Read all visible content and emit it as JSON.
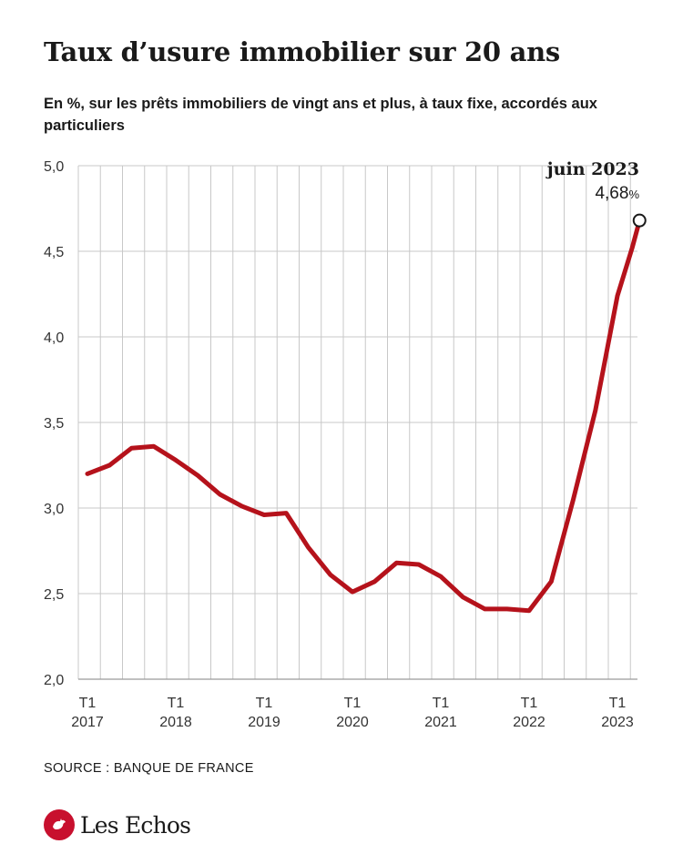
{
  "title": "Taux d’usure immobilier sur 20 ans",
  "subtitle": "En %, sur les prêts immobiliers de vingt ans et plus, à taux fixe, accordés aux particuliers",
  "source": "SOURCE : BANQUE DE FRANCE",
  "brand": "Les Echos",
  "colors": {
    "line": "#b5121b",
    "grid": "#c8c8c8",
    "text": "#1a1a1a",
    "brand": "#c8102e"
  },
  "chart_data": {
    "type": "line",
    "title": "Taux d’usure immobilier sur 20 ans",
    "xlabel": "",
    "ylabel": "",
    "ylim": [
      2.0,
      5.0
    ],
    "yticks": [
      "5,0",
      "4,5",
      "4,0",
      "3,5",
      "3,0",
      "2,5",
      "2,0"
    ],
    "ytick_values": [
      5.0,
      4.5,
      4.0,
      3.5,
      3.0,
      2.5,
      2.0
    ],
    "x_ticks": [
      {
        "top": "T1",
        "bottom": "2017",
        "quarter": 0
      },
      {
        "top": "T1",
        "bottom": "2018",
        "quarter": 4
      },
      {
        "top": "T1",
        "bottom": "2019",
        "quarter": 8
      },
      {
        "top": "T1",
        "bottom": "2020",
        "quarter": 12
      },
      {
        "top": "T1",
        "bottom": "2021",
        "quarter": 16
      },
      {
        "top": "T1",
        "bottom": "2022",
        "quarter": 20
      },
      {
        "top": "T1",
        "bottom": "2023",
        "quarter": 24
      }
    ],
    "grid": true,
    "series": [
      {
        "values": [
          {
            "x": "T1 2017",
            "y": 3.2
          },
          {
            "x": "T2 2017",
            "y": 3.25
          },
          {
            "x": "T3 2017",
            "y": 3.35
          },
          {
            "x": "T4 2017",
            "y": 3.36
          },
          {
            "x": "T1 2018",
            "y": 3.28
          },
          {
            "x": "T2 2018",
            "y": 3.19
          },
          {
            "x": "T3 2018",
            "y": 3.08
          },
          {
            "x": "T4 2018",
            "y": 3.01
          },
          {
            "x": "T1 2019",
            "y": 2.96
          },
          {
            "x": "T2 2019",
            "y": 2.97
          },
          {
            "x": "T3 2019",
            "y": 2.77
          },
          {
            "x": "T4 2019",
            "y": 2.61
          },
          {
            "x": "T1 2020",
            "y": 2.51
          },
          {
            "x": "T2 2020",
            "y": 2.57
          },
          {
            "x": "T3 2020",
            "y": 2.68
          },
          {
            "x": "T4 2020",
            "y": 2.67
          },
          {
            "x": "T1 2021",
            "y": 2.6
          },
          {
            "x": "T2 2021",
            "y": 2.48
          },
          {
            "x": "T3 2021",
            "y": 2.41
          },
          {
            "x": "T4 2021",
            "y": 2.41
          },
          {
            "x": "T1 2022",
            "y": 2.4
          },
          {
            "x": "T2 2022",
            "y": 2.57
          },
          {
            "x": "T3 2022",
            "y": 3.05
          },
          {
            "x": "T4 2022",
            "y": 3.57
          },
          {
            "x": "T1 2023",
            "y": 4.24
          },
          {
            "x": "mai 2023",
            "y": 4.52
          },
          {
            "x": "juin 2023",
            "y": 4.68
          }
        ],
        "xpos": [
          0,
          1,
          2,
          3,
          4,
          5,
          6,
          7,
          8,
          9,
          10,
          11,
          12,
          13,
          14,
          15,
          16,
          17,
          18,
          19,
          20,
          21,
          22,
          23,
          24,
          24.67,
          25
        ]
      }
    ],
    "annotation": {
      "label": "juin 2023",
      "value": "4,68",
      "unit": "%"
    }
  }
}
